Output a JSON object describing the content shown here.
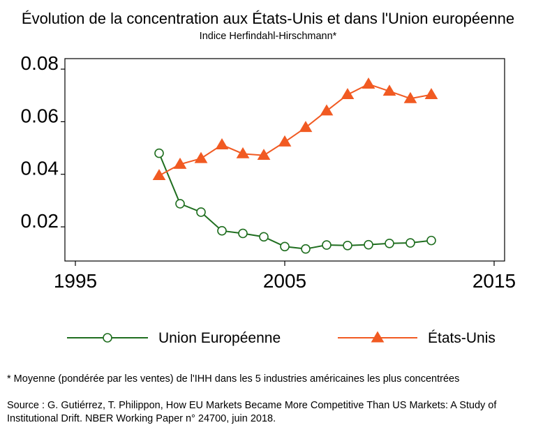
{
  "chart_data": {
    "type": "line",
    "title": "Évolution de la concentration aux États-Unis et dans l'Union européenne",
    "subtitle": "Indice Herfindahl-Hirschmann*",
    "xlabel": "",
    "ylabel": "",
    "xlim": [
      1995,
      2015
    ],
    "ylim": [
      0.007,
      0.084
    ],
    "x_ticks": [
      1995,
      2005,
      2015
    ],
    "x_tick_labels": [
      "1995",
      "2005",
      "2015"
    ],
    "y_ticks": [
      0.02,
      0.04,
      0.06,
      0.08
    ],
    "y_tick_labels": [
      "0.02",
      "0.04",
      "0.06",
      "0.08"
    ],
    "grid": false,
    "legend_position": "bottom",
    "x": [
      1999,
      2000,
      2001,
      2002,
      2003,
      2004,
      2005,
      2006,
      2007,
      2008,
      2009,
      2010,
      2011,
      2012
    ],
    "series": [
      {
        "name": "Union Européenne",
        "color": "#1f6e1f",
        "marker": "open-circle",
        "values": [
          0.048,
          0.0288,
          0.0256,
          0.0185,
          0.0175,
          0.0162,
          0.0125,
          0.0116,
          0.0131,
          0.0129,
          0.0132,
          0.0137,
          0.0139,
          0.0148
        ]
      },
      {
        "name": "États-Unis",
        "color": "#f15a22",
        "marker": "filled-triangle",
        "values": [
          0.0395,
          0.0438,
          0.046,
          0.0512,
          0.0478,
          0.0472,
          0.0523,
          0.0578,
          0.0641,
          0.0703,
          0.0743,
          0.0716,
          0.0688,
          0.0703
        ]
      }
    ]
  },
  "footnote": "* Moyenne (pondérée par les ventes) de l'IHH dans les 5 industries américaines les plus concentrées",
  "source": "Source : G. Gutiérrez, T. Philippon, How EU Markets Became More Competitive Than US Markets: A Study of Institutional Drift. NBER Working Paper n° 24700, juin 2018."
}
